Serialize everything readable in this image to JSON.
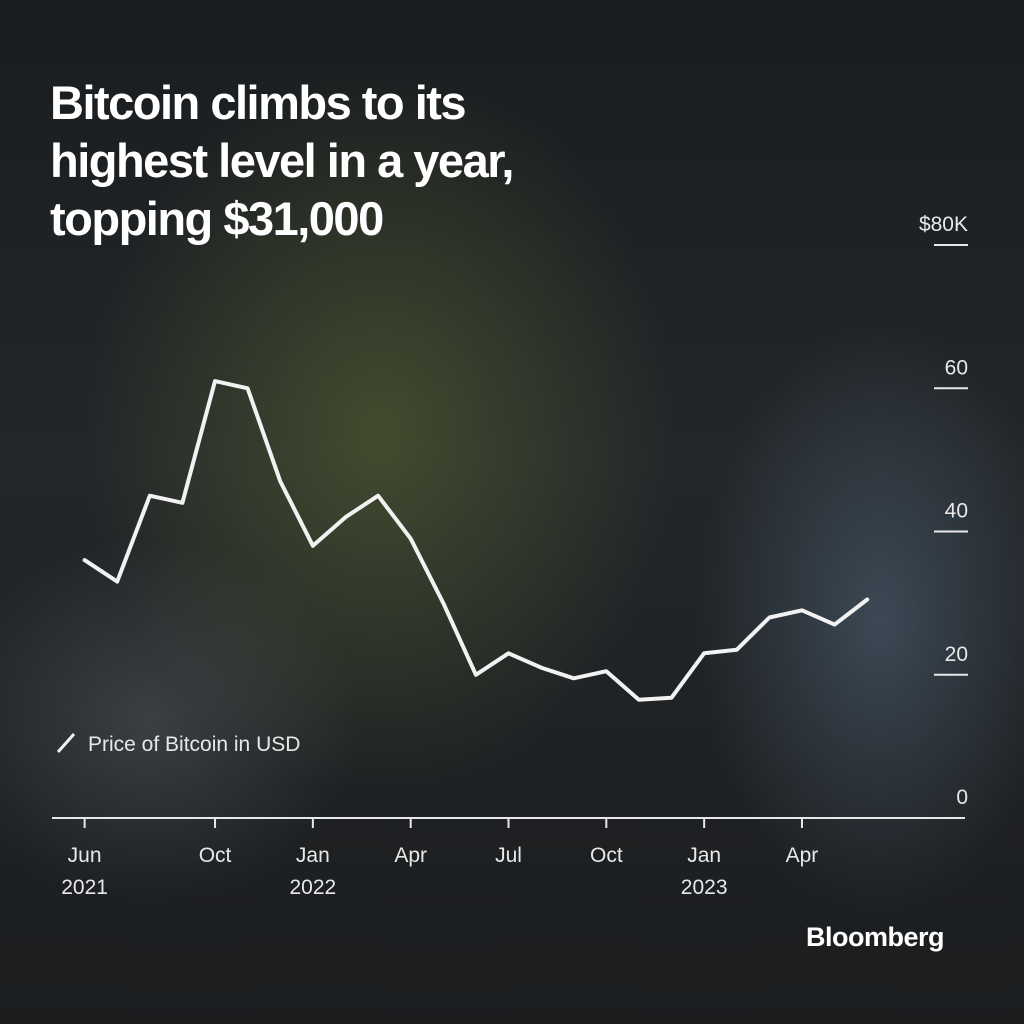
{
  "chart_data": {
    "type": "line",
    "title": "Bitcoin climbs to its highest level in a year, topping $31,000",
    "legend_label": "Price of Bitcoin in USD",
    "brand": "Bloomberg",
    "x": [
      "2021-06",
      "2021-07",
      "2021-08",
      "2021-09",
      "2021-10",
      "2021-11",
      "2021-12",
      "2022-01",
      "2022-02",
      "2022-03",
      "2022-04",
      "2022-05",
      "2022-06",
      "2022-07",
      "2022-08",
      "2022-09",
      "2022-10",
      "2022-11",
      "2022-12",
      "2023-01",
      "2023-02",
      "2023-03",
      "2023-04",
      "2023-05",
      "2023-06"
    ],
    "series": [
      {
        "name": "Price of Bitcoin in USD",
        "color": "#f2f2f2",
        "values": [
          36,
          33,
          45,
          44,
          61,
          60,
          47,
          38,
          42,
          45,
          39,
          30,
          20,
          23,
          21,
          19.5,
          20.5,
          16.5,
          16.8,
          23,
          23.5,
          28,
          29,
          27,
          30.5
        ]
      }
    ],
    "xlim": [
      "2021-05",
      "2023-09"
    ],
    "xticks": [
      {
        "value": "2021-06",
        "label": "Jun 2021"
      },
      {
        "value": "2021-10",
        "label": "Oct"
      },
      {
        "value": "2022-01",
        "label": "Jan 2022"
      },
      {
        "value": "2022-04",
        "label": "Apr"
      },
      {
        "value": "2022-07",
        "label": "Jul"
      },
      {
        "value": "2022-10",
        "label": "Oct"
      },
      {
        "value": "2023-01",
        "label": "Jan 2023"
      },
      {
        "value": "2023-04",
        "label": "Apr"
      }
    ],
    "ylim": [
      0,
      80
    ],
    "yticks": [
      0,
      20,
      40,
      60,
      {
        "value": 80,
        "label": "$80K"
      }
    ]
  }
}
